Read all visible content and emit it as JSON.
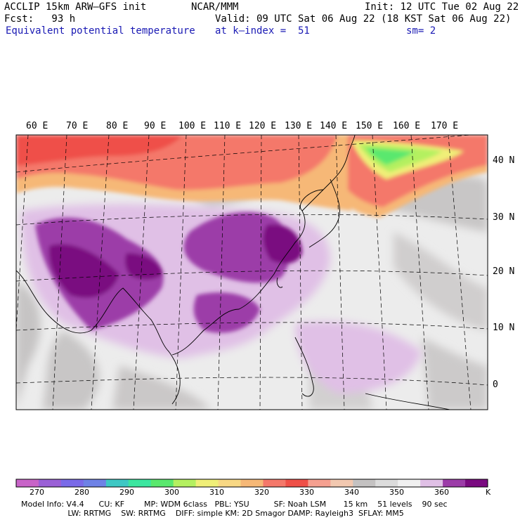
{
  "header": {
    "model": "ACCLIP 15km ARW–GFS init",
    "org": "NCAR/MMM",
    "init": "Init: 12 UTC Tue 02 Aug 22",
    "fcst": "Fcst:   93 h",
    "valid": "Valid: 09 UTC Sat 06 Aug 22 (18 KST Sat 06 Aug 22)",
    "field": "Equivalent potential temperature",
    "level": "at k–index =  51",
    "smooth": "sm= 2"
  },
  "map": {
    "lon_labels": [
      "60 E",
      "70 E",
      "80 E",
      "90 E",
      "100 E",
      "110 E",
      "120 E",
      "130 E",
      "140 E",
      "150 E",
      "160 E",
      "170 E"
    ],
    "lat_labels": [
      "40 N",
      "30 N",
      "20 N",
      "10 N",
      "0"
    ]
  },
  "colorbar": {
    "colors": [
      "#c864c8",
      "#9a60d6",
      "#7a6ae8",
      "#6e82e6",
      "#3ec8c4",
      "#3ce6a0",
      "#5ae86e",
      "#b4f060",
      "#f0ef78",
      "#f8d884",
      "#f6b877",
      "#f4786a",
      "#ef5048",
      "#f5a090",
      "#f2c8b0",
      "#c4c2c2",
      "#dcdcdc",
      "#f0f0f0",
      "#e0c0e6",
      "#9c3ca8",
      "#7a0a80"
    ],
    "ticks": [
      "270",
      "280",
      "290",
      "300",
      "310",
      "320",
      "330",
      "340",
      "350",
      "360"
    ],
    "unit": "K"
  },
  "footer": {
    "line1": "Model Info: V4.4      CU: KF        MP: WDM 6class   PBL: YSU          SF: Noah LSM       15 km    51 levels    90 sec",
    "line2": "                   LW: RRTMG    SW: RRTMG    DIFF: simple KM: 2D Smagor DAMP: Rayleigh3  SFLAY: MM5"
  }
}
